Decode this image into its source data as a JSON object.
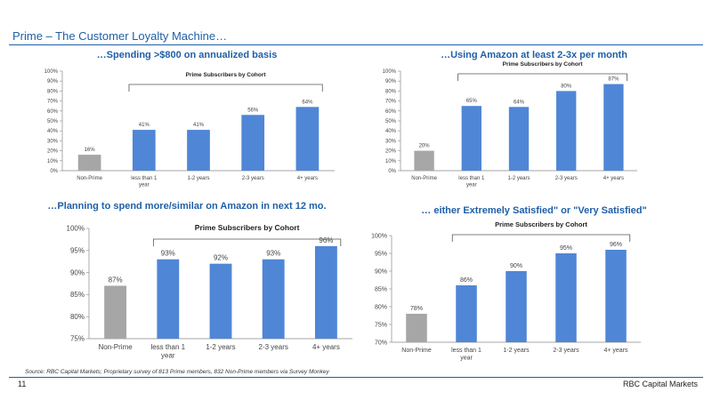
{
  "page": {
    "title": "Prime – The Customer Loyalty Machine…",
    "source": "Source: RBC Capital Markets; Proprietary survey of 813 Prime members, 832 Non-Prime members via Survey Monkey",
    "page_number": "11",
    "brand": "RBC Capital Markets"
  },
  "colors": {
    "accent": "#1f5fa8",
    "prime_bar": "#4f86d6",
    "nonprime_bar": "#a6a6a6"
  },
  "chart_data": [
    {
      "type": "bar",
      "title": "…Spending >$800 on annualized basis",
      "subtitle": "Prime Subscribers by Cohort",
      "categories": [
        "Non-Prime",
        "less than 1 year",
        "1-2 years",
        "2-3 years",
        "4+ years"
      ],
      "values": [
        16,
        41,
        41,
        56,
        64
      ],
      "data_labels": [
        "16%",
        "41%",
        "41%",
        "56%",
        "64%"
      ],
      "ylim": [
        0,
        100
      ],
      "yticks": [
        "0%",
        "10%",
        "20%",
        "30%",
        "40%",
        "50%",
        "60%",
        "70%",
        "80%",
        "90%",
        "100%"
      ],
      "ytick_values": [
        0,
        10,
        20,
        30,
        40,
        50,
        60,
        70,
        80,
        90,
        100
      ],
      "grid": false
    },
    {
      "type": "bar",
      "title": "…Using Amazon at least 2-3x per month",
      "subtitle": "Prime Subscribers by Cohort",
      "categories": [
        "Non-Prime",
        "less than 1 year",
        "1-2 years",
        "2-3 years",
        "4+ years"
      ],
      "values": [
        20,
        65,
        64,
        80,
        87
      ],
      "data_labels": [
        "20%",
        "65%",
        "64%",
        "80%",
        "87%"
      ],
      "ylim": [
        0,
        100
      ],
      "yticks": [
        "0%",
        "10%",
        "20%",
        "30%",
        "40%",
        "50%",
        "60%",
        "70%",
        "80%",
        "90%",
        "100%"
      ],
      "ytick_values": [
        0,
        10,
        20,
        30,
        40,
        50,
        60,
        70,
        80,
        90,
        100
      ],
      "grid": false
    },
    {
      "type": "bar",
      "title": "…Planning to spend more/similar on Amazon in next 12 mo.",
      "subtitle": "Prime Subscribers by Cohort",
      "categories": [
        "Non-Prime",
        "less than 1 year",
        "1-2 years",
        "2-3 years",
        "4+ years"
      ],
      "values": [
        87,
        93,
        92,
        93,
        96
      ],
      "data_labels": [
        "87%",
        "93%",
        "92%",
        "93%",
        "96%"
      ],
      "ylim": [
        75,
        100
      ],
      "yticks": [
        "75%",
        "80%",
        "85%",
        "90%",
        "95%",
        "100%"
      ],
      "ytick_values": [
        75,
        80,
        85,
        90,
        95,
        100
      ],
      "grid": false
    },
    {
      "type": "bar",
      "title": "… either Extremely Satisfied\" or \"Very Satisfied\"",
      "subtitle": "Prime Subscribers by Cohort",
      "categories": [
        "Non-Prime",
        "less than 1 year",
        "1-2 years",
        "2-3 years",
        "4+ years"
      ],
      "values": [
        78,
        86,
        90,
        95,
        96
      ],
      "data_labels": [
        "78%",
        "86%",
        "90%",
        "95%",
        "96%"
      ],
      "ylim": [
        70,
        100
      ],
      "yticks": [
        "70%",
        "75%",
        "80%",
        "85%",
        "90%",
        "95%",
        "100%"
      ],
      "ytick_values": [
        70,
        75,
        80,
        85,
        90,
        95,
        100
      ],
      "grid": false
    }
  ]
}
